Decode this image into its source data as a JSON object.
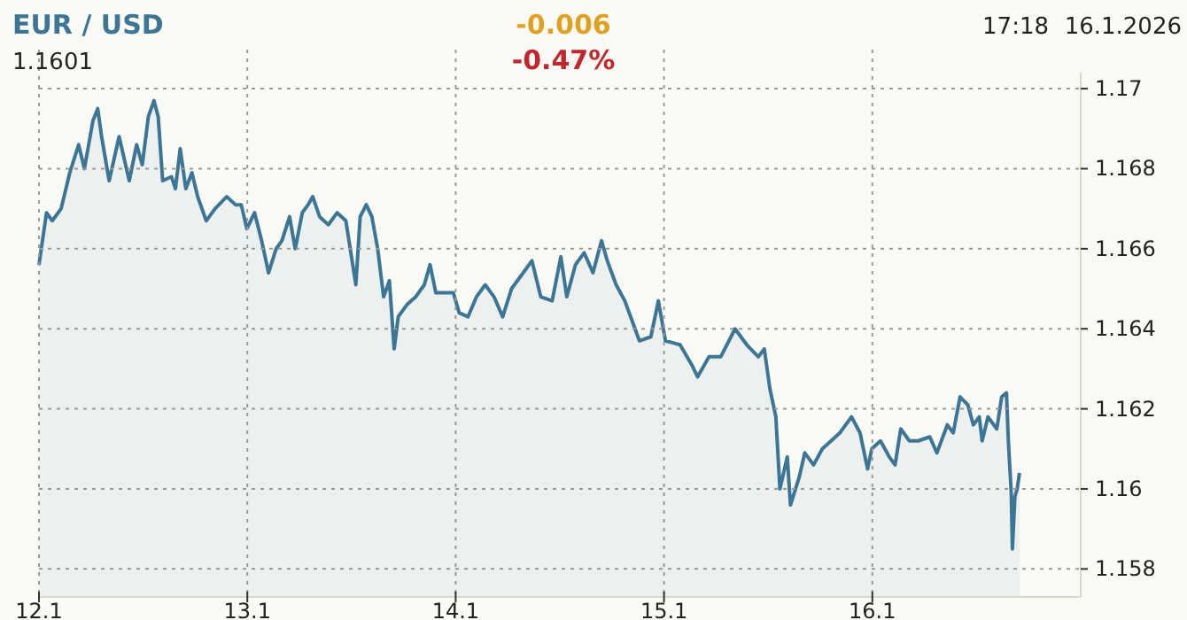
{
  "chart_data": {
    "type": "area",
    "title": "EUR / USD",
    "subtitle": "1.1601",
    "annotations": [
      "-0.006",
      "-0.47%",
      "16.1.2026",
      "17:18"
    ],
    "xlim": [
      "2026-01-12T00:00",
      "2026-01-17T00:00"
    ],
    "xticks": [
      {
        "value": "2026-01-12",
        "label": "12.1"
      },
      {
        "value": "2026-01-13",
        "label": "13.1"
      },
      {
        "value": "2026-01-14",
        "label": "14.1"
      },
      {
        "value": "2026-01-15",
        "label": "15.1"
      },
      {
        "value": "2026-01-16",
        "label": "16.1"
      }
    ],
    "ylim": [
      1.1573,
      1.1704
    ],
    "yticks": [
      1.158,
      1.16,
      1.162,
      1.164,
      1.166,
      1.168,
      1.17
    ],
    "grid": true,
    "series": [
      {
        "color": "#3d7595",
        "x": [
          "2026-01-12T00:00",
          "2026-01-12T00:52",
          "2026-01-12T01:32",
          "2026-01-12T02:33",
          "2026-01-12T03:33",
          "2026-01-12T04:34",
          "2026-01-12T05:14",
          "2026-01-12T06:13",
          "2026-01-12T06:46",
          "2026-01-12T07:13",
          "2026-01-12T08:05",
          "2026-01-12T09:14",
          "2026-01-12T10:24",
          "2026-01-12T11:15",
          "2026-01-12T11:54",
          "2026-01-12T12:36",
          "2026-01-12T13:15",
          "2026-01-12T13:44",
          "2026-01-12T14:15",
          "2026-01-12T15:16",
          "2026-01-12T15:43",
          "2026-01-12T16:16",
          "2026-01-12T16:55",
          "2026-01-12T17:37",
          "2026-01-12T18:17",
          "2026-01-12T19:16",
          "2026-01-12T20:17",
          "2026-01-12T21:37",
          "2026-01-12T22:38",
          "2026-01-12T23:18",
          "2026-01-12T23:57",
          "2026-01-13T00:50",
          "2026-01-13T01:39",
          "2026-01-13T02:27",
          "2026-01-13T03:19",
          "2026-01-13T03:59",
          "2026-01-13T04:52",
          "2026-01-13T05:31",
          "2026-01-13T06:20",
          "2026-01-13T07:00",
          "2026-01-13T07:32",
          "2026-01-13T08:20",
          "2026-01-13T09:20",
          "2026-01-13T10:21",
          "2026-01-13T11:21",
          "2026-01-13T12:00",
          "2026-01-13T12:30",
          "2026-01-13T13:00",
          "2026-01-13T13:42",
          "2026-01-13T14:21",
          "2026-01-13T15:01",
          "2026-01-13T15:42",
          "2026-01-13T16:22",
          "2026-01-13T16:55",
          "2026-01-13T17:23",
          "2026-01-13T18:23",
          "2026-01-13T19:24",
          "2026-01-13T20:23",
          "2026-01-13T21:03",
          "2026-01-13T21:43",
          "2026-01-13T23:44",
          "2026-01-14T00:24",
          "2026-01-14T01:25",
          "2026-01-14T02:24",
          "2026-01-14T03:24",
          "2026-01-14T04:25",
          "2026-01-14T05:25",
          "2026-01-14T06:26",
          "2026-01-14T07:47",
          "2026-01-14T08:47",
          "2026-01-14T09:48",
          "2026-01-14T11:07",
          "2026-01-14T12:07",
          "2026-01-14T12:48",
          "2026-01-14T13:48",
          "2026-01-14T14:48",
          "2026-01-14T15:49",
          "2026-01-14T16:48",
          "2026-01-14T17:28",
          "2026-01-14T18:29",
          "2026-01-14T19:29",
          "2026-01-14T21:10",
          "2026-01-14T22:29",
          "2026-01-14T23:21",
          "2026-01-15T00:10",
          "2026-01-15T01:51",
          "2026-01-15T03:12",
          "2026-01-15T03:52",
          "2026-01-15T05:11",
          "2026-01-15T06:32",
          "2026-01-15T08:11",
          "2026-01-15T09:32",
          "2026-01-15T10:52",
          "2026-01-15T11:33",
          "2026-01-15T12:12",
          "2026-01-15T12:53",
          "2026-01-15T13:21",
          "2026-01-15T14:12",
          "2026-01-15T14:34",
          "2026-01-15T15:35",
          "2026-01-15T16:13",
          "2026-01-15T17:14",
          "2026-01-15T18:14",
          "2026-01-15T19:15",
          "2026-01-15T20:15",
          "2026-01-15T21:36",
          "2026-01-15T22:35",
          "2026-01-15T23:27",
          "2026-01-15T23:56",
          "2026-01-16T00:56",
          "2026-01-16T01:57",
          "2026-01-16T02:37",
          "2026-01-16T03:16",
          "2026-01-16T04:16",
          "2026-01-16T05:17",
          "2026-01-16T06:37",
          "2026-01-16T07:26",
          "2026-01-16T08:38",
          "2026-01-16T09:19",
          "2026-01-16T10:06",
          "2026-01-16T11:00",
          "2026-01-16T11:38",
          "2026-01-16T12:19",
          "2026-01-16T12:39",
          "2026-01-16T13:19",
          "2026-01-16T14:20",
          "2026-01-16T14:54",
          "2026-01-16T15:27",
          "2026-01-16T15:40",
          "2026-01-16T16:00",
          "2026-01-16T16:08",
          "2026-01-16T16:25",
          "2026-01-16T16:41",
          "2026-01-16T16:57"
        ],
        "values": [
          1.1656,
          1.1669,
          1.1667,
          1.167,
          1.1679,
          1.1686,
          1.168,
          1.1692,
          1.1695,
          1.1688,
          1.1677,
          1.1688,
          1.1677,
          1.1686,
          1.1681,
          1.1693,
          1.1697,
          1.1693,
          1.1677,
          1.1678,
          1.1675,
          1.1685,
          1.1675,
          1.1679,
          1.1673,
          1.1667,
          1.167,
          1.1673,
          1.1671,
          1.1671,
          1.1665,
          1.1669,
          1.1662,
          1.1654,
          1.166,
          1.1662,
          1.1668,
          1.166,
          1.1669,
          1.1671,
          1.1673,
          1.1668,
          1.1666,
          1.1669,
          1.1667,
          1.1658,
          1.1651,
          1.1668,
          1.1671,
          1.1668,
          1.166,
          1.1648,
          1.1652,
          1.1635,
          1.1643,
          1.1646,
          1.1648,
          1.1651,
          1.1656,
          1.1649,
          1.1649,
          1.1644,
          1.1643,
          1.1648,
          1.1651,
          1.1648,
          1.1643,
          1.165,
          1.1654,
          1.1657,
          1.1648,
          1.1647,
          1.1658,
          1.1648,
          1.1656,
          1.1659,
          1.1654,
          1.1662,
          1.1657,
          1.1651,
          1.1647,
          1.1637,
          1.1638,
          1.1647,
          1.1637,
          1.1636,
          1.1631,
          1.1628,
          1.1633,
          1.1633,
          1.164,
          1.1636,
          1.1633,
          1.1635,
          1.1625,
          1.1618,
          1.16,
          1.1608,
          1.1596,
          1.1603,
          1.1609,
          1.1606,
          1.161,
          1.1612,
          1.1614,
          1.1618,
          1.1614,
          1.1605,
          1.161,
          1.1612,
          1.1608,
          1.1606,
          1.1615,
          1.1612,
          1.1612,
          1.1613,
          1.1609,
          1.1616,
          1.1614,
          1.1623,
          1.1621,
          1.1616,
          1.1618,
          1.1612,
          1.1618,
          1.1615,
          1.1623,
          1.1624,
          1.1612,
          1.1599,
          1.1585,
          1.1598,
          1.16,
          1.1604
        ]
      }
    ]
  }
}
